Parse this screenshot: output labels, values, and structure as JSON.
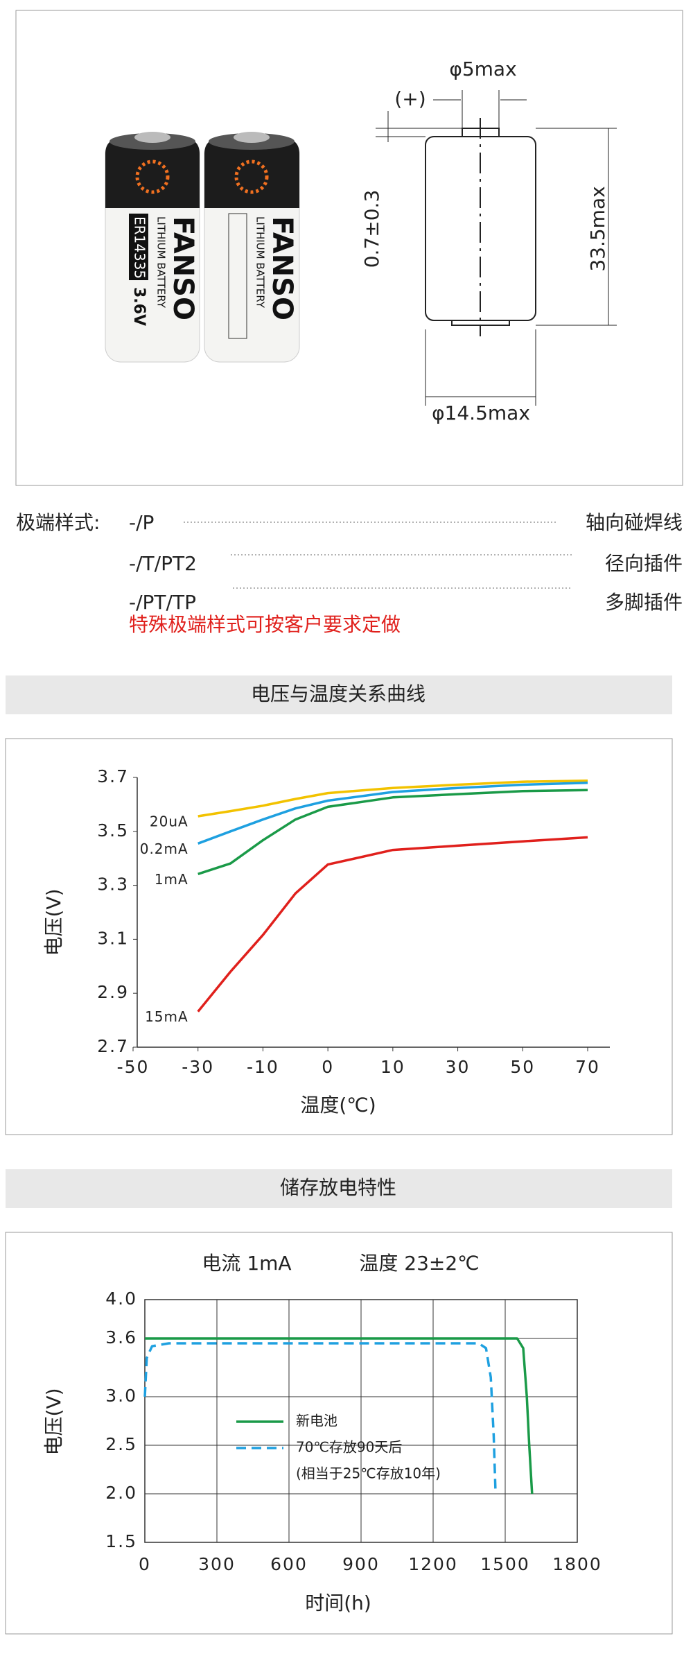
{
  "product_image": {
    "brand": "FANSO",
    "model": "ER14335",
    "voltage": "3.6V",
    "subtitle": "LITHIUM BATTERY"
  },
  "dimensions": {
    "tip_diameter": "φ5max",
    "positive": "(+)",
    "tip_height": "0.7±0.3",
    "height": "33.5max",
    "diameter": "φ14.5max"
  },
  "terminal_styles": {
    "label": "极端样式:",
    "rows": [
      {
        "code": "-/P",
        "desc": "轴向碰焊线"
      },
      {
        "code": "-/T/PT2",
        "desc": "径向插件"
      },
      {
        "code": "-/PT/TP",
        "desc": "多脚插件"
      }
    ],
    "note": "特殊极端样式可按客户要求定做"
  },
  "sections": [
    "电压与温度关系曲线",
    "储存放电特性"
  ],
  "chart_data": [
    {
      "type": "line",
      "x_label": "温度(℃)",
      "y_label": "电压(V)",
      "x": [
        -30,
        -20,
        -10,
        -5,
        0,
        10,
        30,
        50,
        70
      ],
      "xlim": [
        -50,
        70
      ],
      "xticks": [
        -50,
        -30,
        -10,
        0,
        10,
        30,
        50,
        70
      ],
      "x_tick_spacing": "even",
      "ylim": [
        2.7,
        3.7
      ],
      "yticks": [
        2.7,
        2.9,
        3.1,
        3.3,
        3.5,
        3.7
      ],
      "grid": false,
      "legend": "inline",
      "series": [
        {
          "name": "20uA",
          "color": "#f2c200",
          "values": [
            3.556,
            3.575,
            3.595,
            3.62,
            3.642,
            3.661,
            3.673,
            3.684,
            3.688
          ]
        },
        {
          "name": "0.2mA",
          "color": "#1ea0e0",
          "values": [
            3.455,
            3.5,
            3.544,
            3.585,
            3.614,
            3.646,
            3.661,
            3.673,
            3.68
          ]
        },
        {
          "name": "1mA",
          "color": "#1a9a48",
          "values": [
            3.342,
            3.381,
            3.467,
            3.544,
            3.591,
            3.626,
            3.638,
            3.649,
            3.653
          ]
        },
        {
          "name": "15mA",
          "color": "#e0201c",
          "values": [
            2.832,
            2.98,
            3.116,
            3.27,
            3.377,
            3.431,
            3.447,
            3.463,
            3.478
          ]
        }
      ]
    },
    {
      "type": "line",
      "annotations": [
        "电流 1mA",
        "温度 23±2℃"
      ],
      "x_label": "时间(h)",
      "y_label": "电压(V)",
      "xlim": [
        0,
        1800
      ],
      "xticks": [
        0,
        300,
        600,
        900,
        1200,
        1500,
        1800
      ],
      "ylim": [
        1.5,
        4
      ],
      "yticks": [
        1.5,
        {
          "value": 2,
          "label": "2.0"
        },
        2.5,
        {
          "value": 3,
          "label": "3.0"
        },
        3.6,
        {
          "value": 4,
          "label": "4.0"
        }
      ],
      "grid": true,
      "legend": "center",
      "series": [
        {
          "name": "新电池",
          "color": "#1a9a48",
          "dashed": false,
          "x": [
            0,
            1550,
            1575,
            1590,
            1600,
            1612
          ],
          "values": [
            3.6,
            3.6,
            3.5,
            3.0,
            2.5,
            2.0
          ]
        },
        {
          "name": "70℃存放90天后",
          "color": "#1ea0e0",
          "dashed": true,
          "x": [
            0,
            8,
            30,
            100,
            1390,
            1420,
            1440,
            1452,
            1460
          ],
          "values": [
            3.0,
            3.4,
            3.52,
            3.55,
            3.55,
            3.5,
            3.2,
            2.6,
            2.0
          ]
        }
      ],
      "legend_note": "(相当于25℃存放10年)"
    }
  ]
}
